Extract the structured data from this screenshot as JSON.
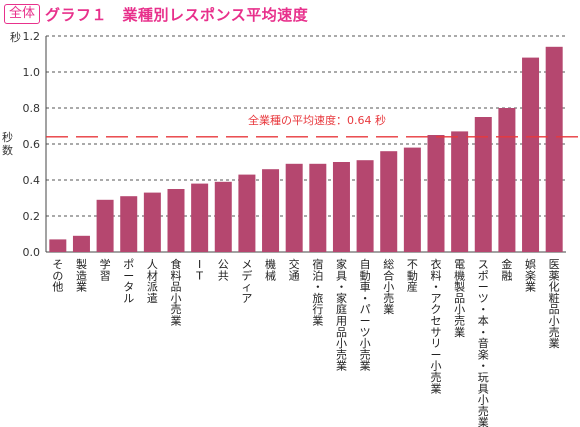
{
  "header": {
    "badge": "全体",
    "title": "グラフ１　業種別レスポンス平均速度"
  },
  "chart_data": {
    "type": "bar",
    "title": "グラフ１　業種別レスポンス平均速度",
    "ylabel": "秒",
    "ylabel_mid": "秒数",
    "ylim": [
      0,
      1.2
    ],
    "yticks": [
      "0.0",
      "0.2",
      "0.4",
      "0.6",
      "0.8",
      "1.0",
      "1.2"
    ],
    "grid": "dashed horizontal",
    "bar_color": "#b5476f",
    "average_line": {
      "value": 0.64,
      "label": "全業種の平均速度：0.64 秒",
      "color": "#e8383d"
    },
    "categories": [
      "その他",
      "製造業",
      "学習",
      "ポータル",
      "人材派遣",
      "食料品小売業",
      "IT",
      "公共",
      "メディア",
      "機械",
      "交通",
      "宿泊・旅行業",
      "家具・家庭用品小売業",
      "自動車・パーツ小売業",
      "総合小売業",
      "不動産",
      "衣料・アクセサリー小売業",
      "電機製品小売業",
      "スポーツ・本・音楽・玩具小売業",
      "金融",
      "娯楽業",
      "医薬化粧品小売業"
    ],
    "values": [
      0.07,
      0.09,
      0.29,
      0.31,
      0.33,
      0.35,
      0.38,
      0.39,
      0.43,
      0.46,
      0.49,
      0.49,
      0.5,
      0.51,
      0.56,
      0.58,
      0.65,
      0.67,
      0.75,
      0.8,
      1.08,
      1.14
    ]
  }
}
